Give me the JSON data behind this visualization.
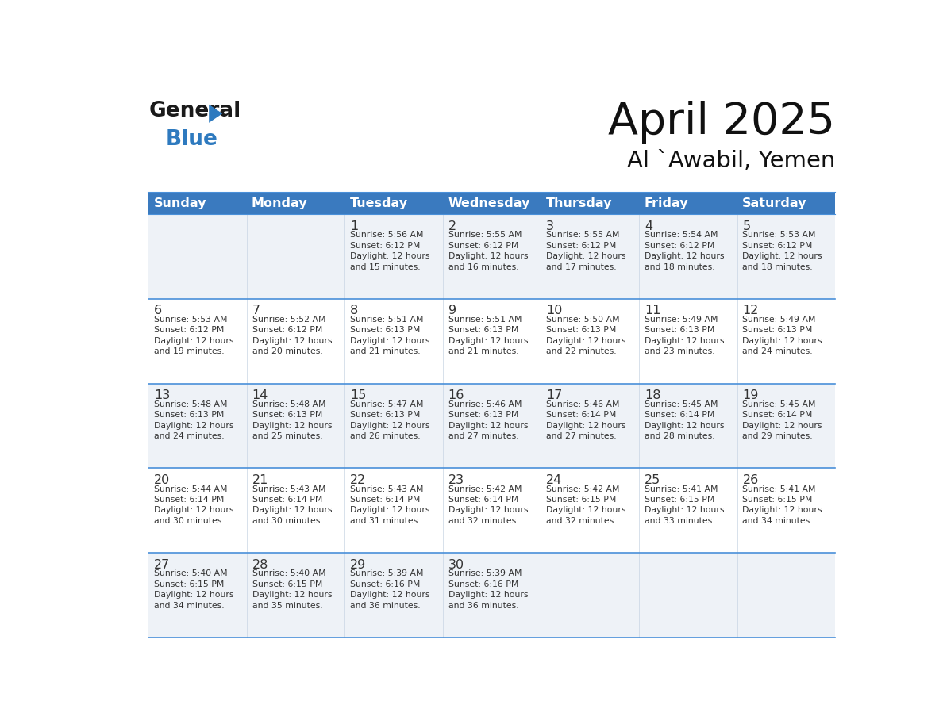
{
  "title": "April 2025",
  "subtitle": "Al `Awabil, Yemen",
  "header_bg_color": "#3a7abf",
  "header_text_color": "#ffffff",
  "cell_bg_odd": "#eef2f7",
  "cell_bg_even": "#ffffff",
  "text_color": "#333333",
  "line_color": "#4a90d9",
  "days_of_week": [
    "Sunday",
    "Monday",
    "Tuesday",
    "Wednesday",
    "Thursday",
    "Friday",
    "Saturday"
  ],
  "weeks": [
    [
      {
        "day": null,
        "sunrise": null,
        "sunset": null,
        "daylight_line1": null,
        "daylight_line2": null
      },
      {
        "day": null,
        "sunrise": null,
        "sunset": null,
        "daylight_line1": null,
        "daylight_line2": null
      },
      {
        "day": 1,
        "sunrise": "5:56 AM",
        "sunset": "6:12 PM",
        "daylight_line1": "12 hours",
        "daylight_line2": "and 15 minutes."
      },
      {
        "day": 2,
        "sunrise": "5:55 AM",
        "sunset": "6:12 PM",
        "daylight_line1": "12 hours",
        "daylight_line2": "and 16 minutes."
      },
      {
        "day": 3,
        "sunrise": "5:55 AM",
        "sunset": "6:12 PM",
        "daylight_line1": "12 hours",
        "daylight_line2": "and 17 minutes."
      },
      {
        "day": 4,
        "sunrise": "5:54 AM",
        "sunset": "6:12 PM",
        "daylight_line1": "12 hours",
        "daylight_line2": "and 18 minutes."
      },
      {
        "day": 5,
        "sunrise": "5:53 AM",
        "sunset": "6:12 PM",
        "daylight_line1": "12 hours",
        "daylight_line2": "and 18 minutes."
      }
    ],
    [
      {
        "day": 6,
        "sunrise": "5:53 AM",
        "sunset": "6:12 PM",
        "daylight_line1": "12 hours",
        "daylight_line2": "and 19 minutes."
      },
      {
        "day": 7,
        "sunrise": "5:52 AM",
        "sunset": "6:12 PM",
        "daylight_line1": "12 hours",
        "daylight_line2": "and 20 minutes."
      },
      {
        "day": 8,
        "sunrise": "5:51 AM",
        "sunset": "6:13 PM",
        "daylight_line1": "12 hours",
        "daylight_line2": "and 21 minutes."
      },
      {
        "day": 9,
        "sunrise": "5:51 AM",
        "sunset": "6:13 PM",
        "daylight_line1": "12 hours",
        "daylight_line2": "and 21 minutes."
      },
      {
        "day": 10,
        "sunrise": "5:50 AM",
        "sunset": "6:13 PM",
        "daylight_line1": "12 hours",
        "daylight_line2": "and 22 minutes."
      },
      {
        "day": 11,
        "sunrise": "5:49 AM",
        "sunset": "6:13 PM",
        "daylight_line1": "12 hours",
        "daylight_line2": "and 23 minutes."
      },
      {
        "day": 12,
        "sunrise": "5:49 AM",
        "sunset": "6:13 PM",
        "daylight_line1": "12 hours",
        "daylight_line2": "and 24 minutes."
      }
    ],
    [
      {
        "day": 13,
        "sunrise": "5:48 AM",
        "sunset": "6:13 PM",
        "daylight_line1": "12 hours",
        "daylight_line2": "and 24 minutes."
      },
      {
        "day": 14,
        "sunrise": "5:48 AM",
        "sunset": "6:13 PM",
        "daylight_line1": "12 hours",
        "daylight_line2": "and 25 minutes."
      },
      {
        "day": 15,
        "sunrise": "5:47 AM",
        "sunset": "6:13 PM",
        "daylight_line1": "12 hours",
        "daylight_line2": "and 26 minutes."
      },
      {
        "day": 16,
        "sunrise": "5:46 AM",
        "sunset": "6:13 PM",
        "daylight_line1": "12 hours",
        "daylight_line2": "and 27 minutes."
      },
      {
        "day": 17,
        "sunrise": "5:46 AM",
        "sunset": "6:14 PM",
        "daylight_line1": "12 hours",
        "daylight_line2": "and 27 minutes."
      },
      {
        "day": 18,
        "sunrise": "5:45 AM",
        "sunset": "6:14 PM",
        "daylight_line1": "12 hours",
        "daylight_line2": "and 28 minutes."
      },
      {
        "day": 19,
        "sunrise": "5:45 AM",
        "sunset": "6:14 PM",
        "daylight_line1": "12 hours",
        "daylight_line2": "and 29 minutes."
      }
    ],
    [
      {
        "day": 20,
        "sunrise": "5:44 AM",
        "sunset": "6:14 PM",
        "daylight_line1": "12 hours",
        "daylight_line2": "and 30 minutes."
      },
      {
        "day": 21,
        "sunrise": "5:43 AM",
        "sunset": "6:14 PM",
        "daylight_line1": "12 hours",
        "daylight_line2": "and 30 minutes."
      },
      {
        "day": 22,
        "sunrise": "5:43 AM",
        "sunset": "6:14 PM",
        "daylight_line1": "12 hours",
        "daylight_line2": "and 31 minutes."
      },
      {
        "day": 23,
        "sunrise": "5:42 AM",
        "sunset": "6:14 PM",
        "daylight_line1": "12 hours",
        "daylight_line2": "and 32 minutes."
      },
      {
        "day": 24,
        "sunrise": "5:42 AM",
        "sunset": "6:15 PM",
        "daylight_line1": "12 hours",
        "daylight_line2": "and 32 minutes."
      },
      {
        "day": 25,
        "sunrise": "5:41 AM",
        "sunset": "6:15 PM",
        "daylight_line1": "12 hours",
        "daylight_line2": "and 33 minutes."
      },
      {
        "day": 26,
        "sunrise": "5:41 AM",
        "sunset": "6:15 PM",
        "daylight_line1": "12 hours",
        "daylight_line2": "and 34 minutes."
      }
    ],
    [
      {
        "day": 27,
        "sunrise": "5:40 AM",
        "sunset": "6:15 PM",
        "daylight_line1": "12 hours",
        "daylight_line2": "and 34 minutes."
      },
      {
        "day": 28,
        "sunrise": "5:40 AM",
        "sunset": "6:15 PM",
        "daylight_line1": "12 hours",
        "daylight_line2": "and 35 minutes."
      },
      {
        "day": 29,
        "sunrise": "5:39 AM",
        "sunset": "6:16 PM",
        "daylight_line1": "12 hours",
        "daylight_line2": "and 36 minutes."
      },
      {
        "day": 30,
        "sunrise": "5:39 AM",
        "sunset": "6:16 PM",
        "daylight_line1": "12 hours",
        "daylight_line2": "and 36 minutes."
      },
      {
        "day": null,
        "sunrise": null,
        "sunset": null,
        "daylight_line1": null,
        "daylight_line2": null
      },
      {
        "day": null,
        "sunrise": null,
        "sunset": null,
        "daylight_line1": null,
        "daylight_line2": null
      },
      {
        "day": null,
        "sunrise": null,
        "sunset": null,
        "daylight_line1": null,
        "daylight_line2": null
      }
    ]
  ]
}
